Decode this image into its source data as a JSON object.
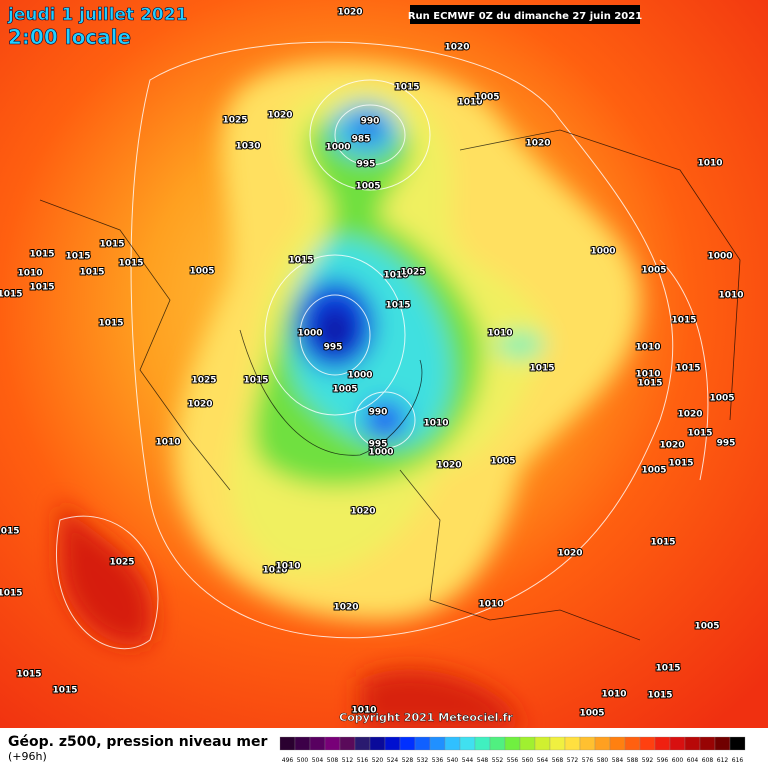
{
  "header": {
    "date": "jeudi 1 juillet 2021",
    "time": "2:00 locale",
    "run": "Run ECMWF 0Z du dimanche 27 juin 2021"
  },
  "copyright": "Copyright 2021 Meteociel.fr",
  "footer": {
    "title": "Géop. z500, pression niveau mer",
    "lead": "(+96h)"
  },
  "colorbar": {
    "labels": [
      "496",
      "500",
      "504",
      "508",
      "512",
      "516",
      "520",
      "524",
      "528",
      "532",
      "536",
      "540",
      "544",
      "548",
      "552",
      "556",
      "560",
      "564",
      "568",
      "572",
      "576",
      "580",
      "584",
      "588",
      "592",
      "596",
      "600",
      "604",
      "608",
      "612",
      "616"
    ]
  },
  "isobar_labels": [
    "1020",
    "1020",
    "1015",
    "1010",
    "1005",
    "1025",
    "1020",
    "990",
    "985",
    "1030",
    "1000",
    "995",
    "1020",
    "1010",
    "1005",
    "1015",
    "1015",
    "1015",
    "1015",
    "1010",
    "1015",
    "1015",
    "1015",
    "1005",
    "1015",
    "1010",
    "1025",
    "1000",
    "1005",
    "1000",
    "1010",
    "1015",
    "1015",
    "1015",
    "1000",
    "995",
    "1010",
    "1010",
    "1015",
    "1000",
    "1025",
    "1015",
    "1005",
    "1010",
    "1015",
    "1015",
    "1020",
    "990",
    "1010",
    "1020",
    "1010",
    "995",
    "1000",
    "1005",
    "995",
    "1015",
    "1020",
    "1015",
    "1020",
    "1005",
    "1005",
    "1020",
    "1015",
    "1025",
    "1010",
    "1010",
    "1020",
    "1015",
    "1015",
    "1010",
    "1020",
    "1005",
    "1015",
    "1015",
    "1015",
    "1010",
    "1015",
    "1005",
    "1010"
  ]
}
